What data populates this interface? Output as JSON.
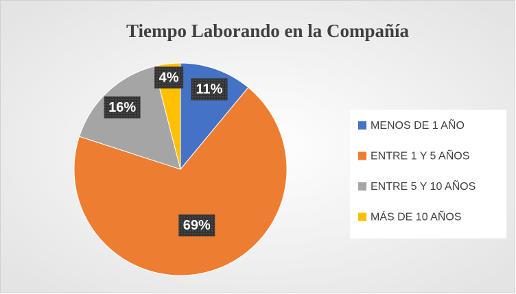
{
  "chart_data": {
    "type": "pie",
    "title": "Tiempo Laborando en la Compañía",
    "categories": [
      "MENOS DE 1 AÑO",
      "ENTRE 1 Y 5 AÑOS",
      "ENTRE 5 Y 10 AÑOS",
      "MÁS DE 10 AÑOS"
    ],
    "values": [
      11,
      69,
      16,
      4
    ],
    "value_labels": [
      "11%",
      "69%",
      "16%",
      "4%"
    ],
    "colors": [
      "#4472c4",
      "#ed7d31",
      "#a5a5a5",
      "#ffc000"
    ],
    "legend": "right"
  }
}
